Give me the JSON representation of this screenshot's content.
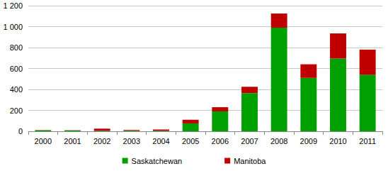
{
  "chart_data": {
    "type": "bar",
    "stacked": true,
    "grid": true,
    "legend": "bottom",
    "categories": [
      "2000",
      "2001",
      "2002",
      "2003",
      "2004",
      "2005",
      "2006",
      "2007",
      "2008",
      "2009",
      "2010",
      "2011"
    ],
    "series": [
      {
        "name": "Saskatchewan",
        "color": "#00a000",
        "values": [
          10,
          8,
          5,
          5,
          5,
          75,
          190,
          365,
          990,
          510,
          695,
          540
        ]
      },
      {
        "name": "Manitoba",
        "color": "#c00000",
        "values": [
          2,
          2,
          20,
          7,
          12,
          35,
          40,
          60,
          135,
          130,
          240,
          240
        ]
      }
    ],
    "ylim": [
      0,
      1200
    ],
    "yticks": [
      0,
      200,
      400,
      600,
      800,
      {
        "value": 1000,
        "label": "1 000"
      },
      {
        "value": 1200,
        "label": "1 200"
      }
    ]
  }
}
